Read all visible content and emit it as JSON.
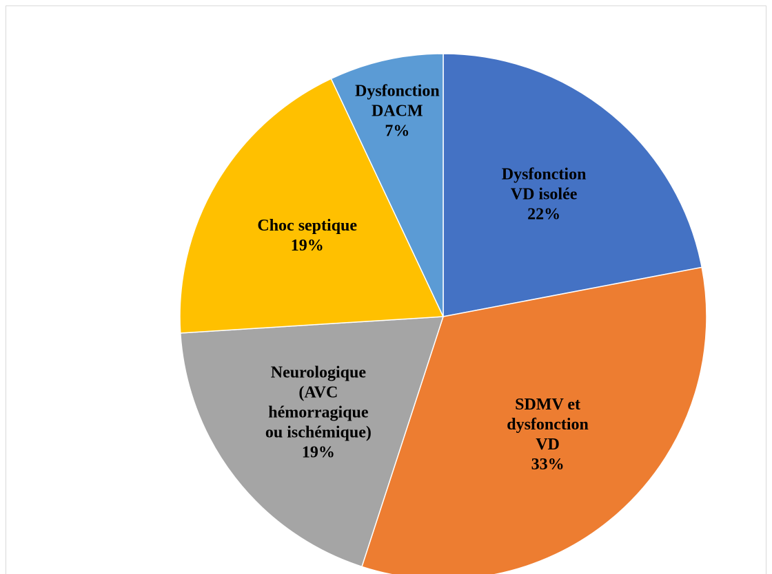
{
  "chart_data": {
    "type": "pie",
    "categories": [
      "Dysfonction\nVD isolée",
      "SDMV et\ndysfonction\nVD",
      "Neurologique\n(AVC\nhémorragique\nou ischémique)",
      "Choc septique",
      "Dysfonction\nDACM"
    ],
    "values": [
      22,
      33,
      19,
      19,
      7
    ],
    "value_labels": [
      "22%",
      "33%",
      "19%",
      "19%",
      "7%"
    ],
    "colors": [
      "#4472c4",
      "#ed7d31",
      "#a5a5a5",
      "#ffc000",
      "#5b9bd5"
    ]
  }
}
